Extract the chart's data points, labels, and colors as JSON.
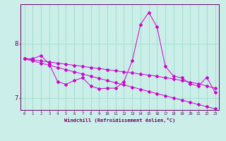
{
  "bg_color": "#cceee8",
  "line_color": "#cc00cc",
  "grid_color": "#99ddcc",
  "xlabel": "Windchill (Refroidissement éolien,°C)",
  "xlabel_color": "#660066",
  "tick_color": "#660066",
  "axis_color": "#660066",
  "x_values": [
    0,
    1,
    2,
    3,
    4,
    5,
    6,
    7,
    8,
    9,
    10,
    11,
    12,
    13,
    14,
    15,
    16,
    17,
    18,
    19,
    20,
    21,
    22,
    23
  ],
  "ylim": [
    6.78,
    8.72
  ],
  "xlim": [
    -0.5,
    23.5
  ],
  "yticks": [
    7,
    8
  ],
  "series1": [
    7.72,
    7.72,
    7.78,
    7.62,
    7.3,
    7.25,
    7.32,
    7.37,
    7.22,
    7.17,
    7.18,
    7.18,
    7.3,
    7.68,
    8.35,
    8.57,
    8.3,
    7.58,
    7.4,
    7.37,
    7.26,
    7.22,
    7.38,
    7.1
  ],
  "series2": [
    7.72,
    7.68,
    7.64,
    7.6,
    7.56,
    7.52,
    7.48,
    7.44,
    7.4,
    7.36,
    7.32,
    7.28,
    7.24,
    7.2,
    7.16,
    7.12,
    7.08,
    7.04,
    7.0,
    6.96,
    6.92,
    6.88,
    6.84,
    6.8
  ],
  "series3": [
    7.72,
    7.7,
    7.68,
    7.66,
    7.64,
    7.62,
    7.6,
    7.58,
    7.56,
    7.54,
    7.52,
    7.5,
    7.48,
    7.46,
    7.44,
    7.42,
    7.4,
    7.37,
    7.35,
    7.32,
    7.29,
    7.26,
    7.22,
    7.18
  ]
}
